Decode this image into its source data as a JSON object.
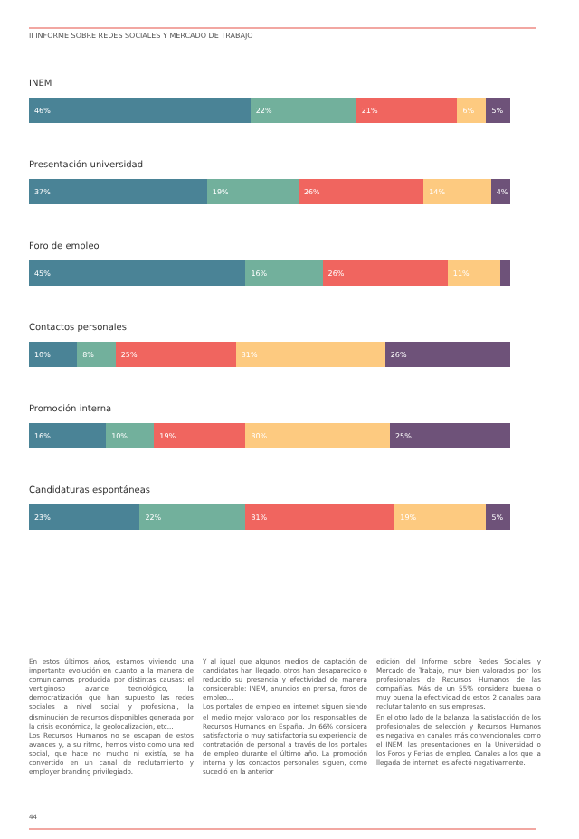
{
  "chart_data": [
    {
      "type": "bar",
      "orientation": "horizontal",
      "stacked": true,
      "title": "INEM",
      "categories": [
        null
      ],
      "series": [
        {
          "color": "#4a8396",
          "values": [
            46
          ],
          "value_labels": [
            "46%"
          ]
        },
        {
          "color": "#72b09c",
          "values": [
            22
          ],
          "value_labels": [
            "22%"
          ]
        },
        {
          "color": "#f0655f",
          "values": [
            21
          ],
          "value_labels": [
            "21%"
          ]
        },
        {
          "color": "#fdca80",
          "values": [
            6
          ],
          "value_labels": [
            "6%"
          ]
        },
        {
          "color": "#6e5279",
          "values": [
            5
          ],
          "value_labels": [
            "5%"
          ]
        }
      ]
    },
    {
      "type": "bar",
      "orientation": "horizontal",
      "stacked": true,
      "title": "Presentación universidad",
      "categories": [
        null
      ],
      "series": [
        {
          "color": "#4a8396",
          "values": [
            37
          ],
          "value_labels": [
            "37%"
          ]
        },
        {
          "color": "#72b09c",
          "values": [
            19
          ],
          "value_labels": [
            "19%"
          ]
        },
        {
          "color": "#f0655f",
          "values": [
            26
          ],
          "value_labels": [
            "26%"
          ]
        },
        {
          "color": "#fdca80",
          "values": [
            14
          ],
          "value_labels": [
            "14%"
          ]
        },
        {
          "color": "#6e5279",
          "values": [
            4
          ],
          "value_labels": [
            "4%"
          ]
        }
      ]
    },
    {
      "type": "bar",
      "orientation": "horizontal",
      "stacked": true,
      "title": "Foro de empleo",
      "categories": [
        null
      ],
      "series": [
        {
          "color": "#4a8396",
          "values": [
            45
          ],
          "value_labels": [
            "45%"
          ]
        },
        {
          "color": "#72b09c",
          "values": [
            16
          ],
          "value_labels": [
            "16%"
          ]
        },
        {
          "color": "#f0655f",
          "values": [
            26
          ],
          "value_labels": [
            "26%"
          ]
        },
        {
          "color": "#fdca80",
          "values": [
            11
          ],
          "value_labels": [
            "11%"
          ]
        },
        {
          "color": "#6e5279",
          "values": [
            2
          ],
          "value_labels": [
            null
          ]
        }
      ]
    },
    {
      "type": "bar",
      "orientation": "horizontal",
      "stacked": true,
      "title": "Contactos personales",
      "categories": [
        null
      ],
      "series": [
        {
          "color": "#4a8396",
          "values": [
            10
          ],
          "value_labels": [
            "10%"
          ]
        },
        {
          "color": "#72b09c",
          "values": [
            8
          ],
          "value_labels": [
            "8%"
          ]
        },
        {
          "color": "#f0655f",
          "values": [
            25
          ],
          "value_labels": [
            "25%"
          ]
        },
        {
          "color": "#fdca80",
          "values": [
            31
          ],
          "value_labels": [
            "31%"
          ]
        },
        {
          "color": "#6e5279",
          "values": [
            26
          ],
          "value_labels": [
            "26%"
          ]
        }
      ]
    },
    {
      "type": "bar",
      "orientation": "horizontal",
      "stacked": true,
      "title": "Promoción interna",
      "categories": [
        null
      ],
      "series": [
        {
          "color": "#4a8396",
          "values": [
            16
          ],
          "value_labels": [
            "16%"
          ]
        },
        {
          "color": "#72b09c",
          "values": [
            10
          ],
          "value_labels": [
            "10%"
          ]
        },
        {
          "color": "#f0655f",
          "values": [
            19
          ],
          "value_labels": [
            "19%"
          ]
        },
        {
          "color": "#fdca80",
          "values": [
            30
          ],
          "value_labels": [
            "30%"
          ]
        },
        {
          "color": "#6e5279",
          "values": [
            25
          ],
          "value_labels": [
            "25%"
          ]
        }
      ]
    },
    {
      "type": "bar",
      "orientation": "horizontal",
      "stacked": true,
      "title": "Candidaturas espontáneas",
      "categories": [
        null
      ],
      "series": [
        {
          "color": "#4a8396",
          "values": [
            23
          ],
          "value_labels": [
            "23%"
          ]
        },
        {
          "color": "#72b09c",
          "values": [
            22
          ],
          "value_labels": [
            "22%"
          ]
        },
        {
          "color": "#f0655f",
          "values": [
            31
          ],
          "value_labels": [
            "31%"
          ]
        },
        {
          "color": "#fdca80",
          "values": [
            19
          ],
          "value_labels": [
            "19%"
          ]
        },
        {
          "color": "#6e5279",
          "values": [
            5
          ],
          "value_labels": [
            "5%"
          ]
        }
      ]
    },
    {
      "type": "other",
      "annotations": [
        "II INFORME SOBRE REDES SOCIALES Y MERCADO DE TRABAJO",
        "En estos últimos años, estamos viviendo una importante evolución en cuanto a la manera de comunicarnos producida por distintas causas: el vertiginoso avance tecnológico, la democratización que han supuesto las redes sociales a nivel social y profesional, la disminución de recursos disponibles generada por la crisis económica, la geolocalización, etc...\nLos Recursos Humanos no se escapan de estos avances y, a su ritmo, hemos visto como una red social, que hace no mucho ni existía, se ha convertido en un canal de reclutamiento y employer branding privilegiado.",
        "Y al igual que algunos medios de captación de candidatos han llegado, otros han desaparecido o reducido su presencia y efectividad de manera considerable: INEM, anuncios en prensa, foros de empleo...\nLos portales de empleo en internet siguen siendo el medio mejor valorado por los responsables de Recursos Humanos en España. Un 66% considera satisfactoria o muy satisfactoria su experiencia de contratación de personal a través de los portales de empleo durante el último año. La promoción interna y los contactos personales siguen, como sucedió en la anterior",
        "edición del Informe sobre Redes Sociales y Mercado de Trabajo, muy bien valorados por los profesionales de Recursos Humanos de las compañías. Más de un 55% considera buena o muy buena la efectividad de estos 2 canales para reclutar talento en sus empresas.\nEn el otro lado de la balanza, la satisfacción de los profesionales de selección y Recursos Humanos es negativa en canales más convencionales como el INEM, las presentaciones en la Universidad o los Foros y Ferias de empleo. Canales a los que la llegada de internet les afectó negativamente.",
        "44"
      ]
    }
  ]
}
